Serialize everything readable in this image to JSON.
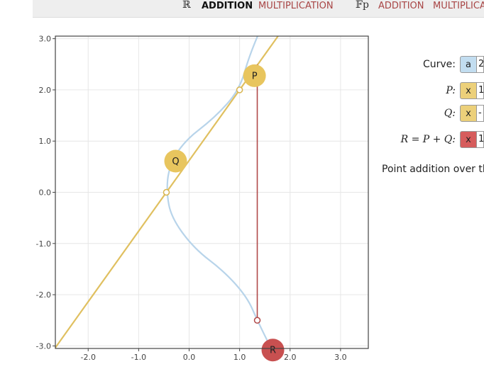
{
  "nav": {
    "real_symbol": "ℝ",
    "real_addition": "ADDITION",
    "real_multiplication": "MULTIPLICATION",
    "fp_symbol": "𝔽p",
    "fp_addition": "ADDITION",
    "fp_multiplication": "MULTIPLICA"
  },
  "chart_data": {
    "type": "line",
    "xlim": [
      -2.65,
      3.55
    ],
    "ylim": [
      -3.05,
      3.05
    ],
    "x_ticks": [
      "-2.0",
      "-1.0",
      "0.0",
      "1.0",
      "2.0",
      "3.0"
    ],
    "y_ticks": [
      "3.0",
      "2.0",
      "1.0",
      "0.0",
      "-1.0",
      "-2.0",
      "-3.0"
    ],
    "curve": {
      "name": "y² = x³ - 3x + 2... (shown as blue curve)"
    },
    "points": {
      "P": {
        "label": "P",
        "x": 1.0,
        "y": 2.0
      },
      "Q": {
        "label": "Q",
        "x": -0.45,
        "y": 0.0
      },
      "R": {
        "label": "R",
        "x": 1.35,
        "y": -2.5
      }
    },
    "colors": {
      "curve": "#b8d4ea",
      "line": "#e0c060",
      "vertical": "#b04848",
      "pq_marker": "#e8c55e",
      "r_marker": "#c85050"
    }
  },
  "form": {
    "curve_label": "Curve:",
    "curve_chip": "a",
    "curve_value": "2",
    "p_label": "P:",
    "p_chip": "x",
    "p_value": "1",
    "q_label": "Q:",
    "q_chip": "x",
    "q_value": "-",
    "r_label": "R = P + Q:",
    "r_chip": "x",
    "r_value": "1"
  },
  "description": "Point addition over th"
}
